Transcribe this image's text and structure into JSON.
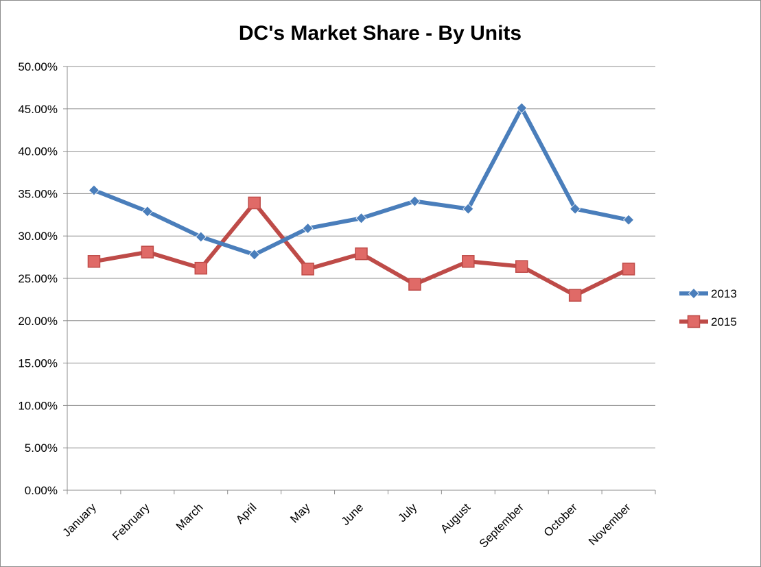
{
  "chart_data": {
    "type": "line",
    "title": "DC's Market Share - By Units",
    "xlabel": "",
    "ylabel": "",
    "categories": [
      "January",
      "February",
      "March",
      "April",
      "May",
      "June",
      "July",
      "August",
      "September",
      "October",
      "November"
    ],
    "ylim": [
      0,
      0.5
    ],
    "yticks": [
      0,
      0.05,
      0.1,
      0.15,
      0.2,
      0.25,
      0.3,
      0.35,
      0.4,
      0.45,
      0.5
    ],
    "ytick_labels": [
      "0.00%",
      "5.00%",
      "10.00%",
      "15.00%",
      "20.00%",
      "25.00%",
      "30.00%",
      "35.00%",
      "40.00%",
      "45.00%",
      "50.00%"
    ],
    "grid": true,
    "legend_position": "right",
    "series": [
      {
        "name": "2013",
        "color": "#4a7ebb",
        "marker": "diamond",
        "values": [
          0.354,
          0.329,
          0.299,
          0.278,
          0.309,
          0.321,
          0.341,
          0.332,
          0.451,
          0.332,
          0.319
        ]
      },
      {
        "name": "2015",
        "color": "#be4b48",
        "marker": "square",
        "values": [
          0.27,
          0.281,
          0.262,
          0.339,
          0.261,
          0.279,
          0.243,
          0.27,
          0.264,
          0.23,
          0.261
        ]
      }
    ]
  }
}
